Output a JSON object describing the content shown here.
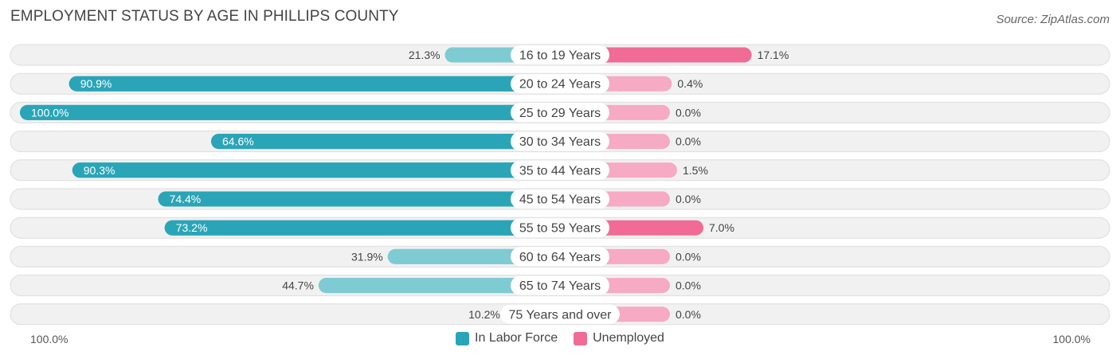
{
  "title": "EMPLOYMENT STATUS BY AGE IN PHILLIPS COUNTY",
  "source": "Source: ZipAtlas.com",
  "colors": {
    "labor_dark": "#2aa5b8",
    "labor_light": "#7ecbd4",
    "unemp_dark": "#f06b96",
    "unemp_light": "#f7aac3",
    "row_bg": "#f1f1f1",
    "row_border": "#dddddd"
  },
  "chart_data": {
    "type": "bar",
    "orientation": "horizontal-diverging",
    "title": "EMPLOYMENT STATUS BY AGE IN PHILLIPS COUNTY",
    "categories": [
      "16 to 19 Years",
      "20 to 24 Years",
      "25 to 29 Years",
      "30 to 34 Years",
      "35 to 44 Years",
      "45 to 54 Years",
      "55 to 59 Years",
      "60 to 64 Years",
      "65 to 74 Years",
      "75 Years and over"
    ],
    "series": [
      {
        "name": "In Labor Force",
        "values": [
          21.3,
          90.9,
          100.0,
          64.6,
          90.3,
          74.4,
          73.2,
          31.9,
          44.7,
          10.2
        ]
      },
      {
        "name": "Unemployed",
        "values": [
          17.1,
          0.4,
          0.0,
          0.0,
          1.5,
          0.0,
          7.0,
          0.0,
          0.0,
          0.0
        ]
      }
    ],
    "value_labels": {
      "labor": [
        "21.3%",
        "90.9%",
        "100.0%",
        "64.6%",
        "90.3%",
        "74.4%",
        "73.2%",
        "31.9%",
        "44.7%",
        "10.2%"
      ],
      "unemployed": [
        "17.1%",
        "0.4%",
        "0.0%",
        "0.0%",
        "1.5%",
        "0.0%",
        "7.0%",
        "0.0%",
        "0.0%",
        "0.0%"
      ]
    },
    "xlim": [
      -100,
      100
    ],
    "axis_left_label": "100.0%",
    "axis_right_label": "100.0%",
    "legend": [
      "In Labor Force",
      "Unemployed"
    ],
    "legend_position": "bottom-center"
  }
}
